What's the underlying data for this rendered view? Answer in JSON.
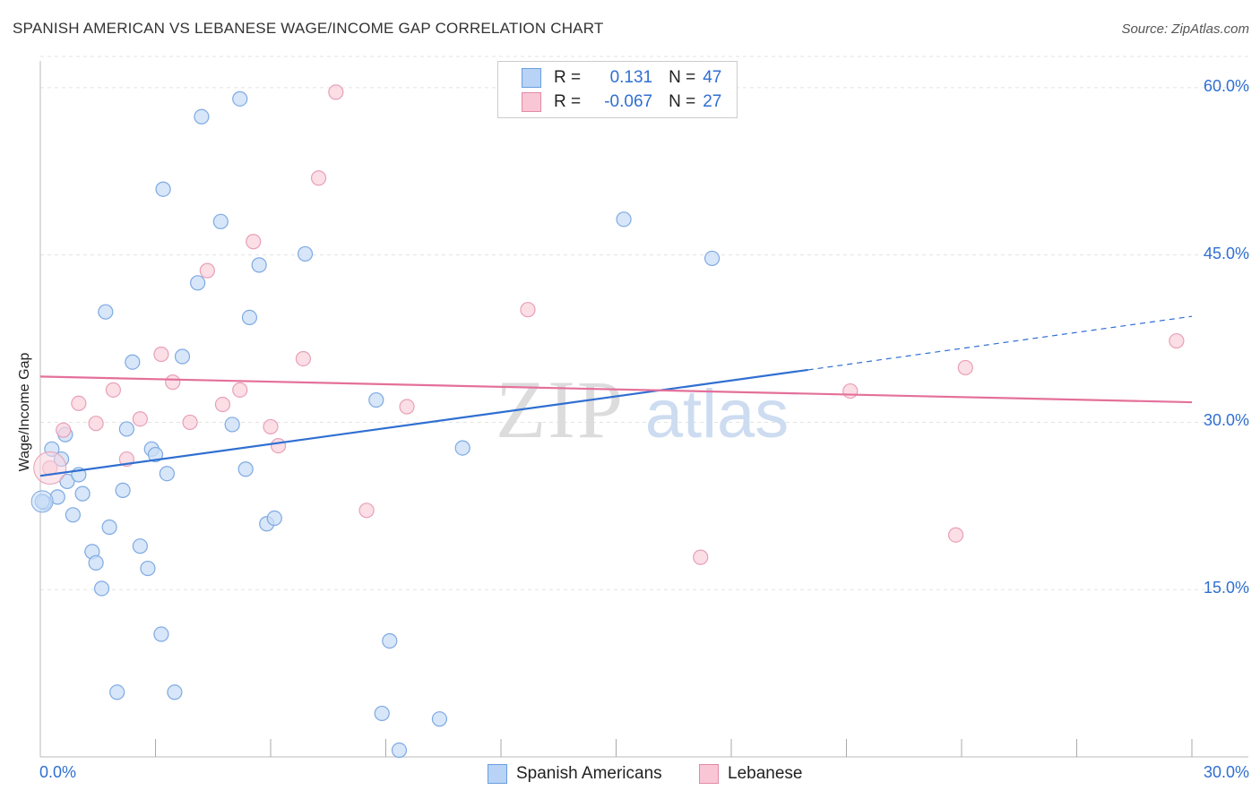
{
  "header": {
    "title": "SPANISH AMERICAN VS LEBANESE WAGE/INCOME GAP CORRELATION CHART",
    "source": "Source: ZipAtlas.com"
  },
  "watermark": {
    "zip": "ZIP",
    "atlas": "atlas"
  },
  "legend": {
    "r_label": "R =",
    "n_label": "N =",
    "rows": [
      {
        "r": "0.131",
        "n": "47",
        "fill": "#b8d3f5",
        "stroke": "#6a9fe0"
      },
      {
        "r": "-0.067",
        "n": "27",
        "fill": "#f9c6d5",
        "stroke": "#e28aa6"
      }
    ]
  },
  "colors": {
    "blue_point_fill": "#c9ddf6",
    "blue_point_stroke": "#7ea9e3",
    "blue_line": "#2f6fd1",
    "pink_point_fill": "#fad3de",
    "pink_point_stroke": "#e8a0b7",
    "pink_line": "#e4709a",
    "grid": "#e3e3e3",
    "axis_text": "#2f6fd1"
  },
  "chart_data": {
    "type": "scatter",
    "title": "SPANISH AMERICAN VS LEBANESE WAGE/INCOME GAP CORRELATION CHART",
    "xlabel": "",
    "ylabel": "Wage/Income Gap",
    "xlim": [
      0,
      30
    ],
    "ylim": [
      0,
      62
    ],
    "x_tick_labels": [
      "0.0%",
      "30.0%"
    ],
    "y_ticks": [
      15,
      30,
      45,
      60
    ],
    "y_tick_labels": [
      "15.0%",
      "30.0%",
      "45.0%",
      "60.0%"
    ],
    "series": [
      {
        "name": "Spanish Americans",
        "r": 0.131,
        "n": 47,
        "trend": {
          "x0": 0,
          "y0": 25.2,
          "x1": 20.0,
          "y1": 34.7,
          "dashed_to_x": 30,
          "dashed_to_y": 39.5
        },
        "points": [
          [
            0.1,
            22.8
          ],
          [
            0.3,
            27.6
          ],
          [
            0.45,
            23.3
          ],
          [
            0.55,
            26.7
          ],
          [
            0.7,
            24.7
          ],
          [
            0.65,
            28.9
          ],
          [
            0.85,
            21.7
          ],
          [
            1.0,
            25.3
          ],
          [
            1.1,
            23.6
          ],
          [
            1.35,
            18.4
          ],
          [
            1.45,
            17.4
          ],
          [
            1.6,
            15.1
          ],
          [
            1.7,
            39.9
          ],
          [
            1.8,
            20.6
          ],
          [
            2.0,
            5.8
          ],
          [
            2.15,
            23.9
          ],
          [
            2.25,
            29.4
          ],
          [
            2.4,
            35.4
          ],
          [
            2.6,
            18.9
          ],
          [
            2.8,
            16.9
          ],
          [
            2.9,
            27.6
          ],
          [
            3.0,
            27.1
          ],
          [
            3.15,
            11.0
          ],
          [
            3.2,
            50.9
          ],
          [
            3.3,
            25.4
          ],
          [
            3.5,
            5.8
          ],
          [
            3.7,
            35.9
          ],
          [
            4.1,
            42.5
          ],
          [
            4.2,
            57.4
          ],
          [
            4.7,
            48.0
          ],
          [
            5.0,
            29.8
          ],
          [
            5.2,
            59.0
          ],
          [
            5.35,
            25.8
          ],
          [
            5.45,
            39.4
          ],
          [
            5.7,
            44.1
          ],
          [
            5.9,
            20.9
          ],
          [
            6.1,
            21.4
          ],
          [
            6.9,
            45.1
          ],
          [
            8.75,
            32.0
          ],
          [
            8.9,
            3.9
          ],
          [
            9.1,
            10.4
          ],
          [
            9.35,
            0.6
          ],
          [
            10.4,
            3.4
          ],
          [
            11.0,
            27.7
          ],
          [
            15.2,
            48.2
          ],
          [
            17.5,
            44.7
          ],
          [
            0.05,
            22.9
          ]
        ]
      },
      {
        "name": "Lebanese",
        "r": -0.067,
        "n": 27,
        "trend": {
          "x0": 0,
          "y0": 34.1,
          "x1": 30,
          "y1": 31.8
        },
        "points": [
          [
            0.25,
            25.9
          ],
          [
            0.6,
            29.3
          ],
          [
            1.0,
            31.7
          ],
          [
            1.45,
            29.9
          ],
          [
            1.9,
            32.9
          ],
          [
            2.25,
            26.7
          ],
          [
            2.6,
            30.3
          ],
          [
            3.15,
            36.1
          ],
          [
            3.45,
            33.6
          ],
          [
            3.9,
            30.0
          ],
          [
            4.35,
            43.6
          ],
          [
            4.75,
            31.6
          ],
          [
            5.2,
            32.9
          ],
          [
            5.55,
            46.2
          ],
          [
            6.0,
            29.6
          ],
          [
            6.2,
            27.9
          ],
          [
            6.85,
            35.7
          ],
          [
            7.25,
            51.9
          ],
          [
            7.7,
            59.6
          ],
          [
            8.5,
            22.1
          ],
          [
            9.55,
            31.4
          ],
          [
            12.7,
            40.1
          ],
          [
            17.2,
            17.9
          ],
          [
            21.1,
            32.8
          ],
          [
            23.85,
            19.9
          ],
          [
            24.1,
            34.9
          ],
          [
            29.6,
            37.3
          ]
        ]
      }
    ]
  }
}
